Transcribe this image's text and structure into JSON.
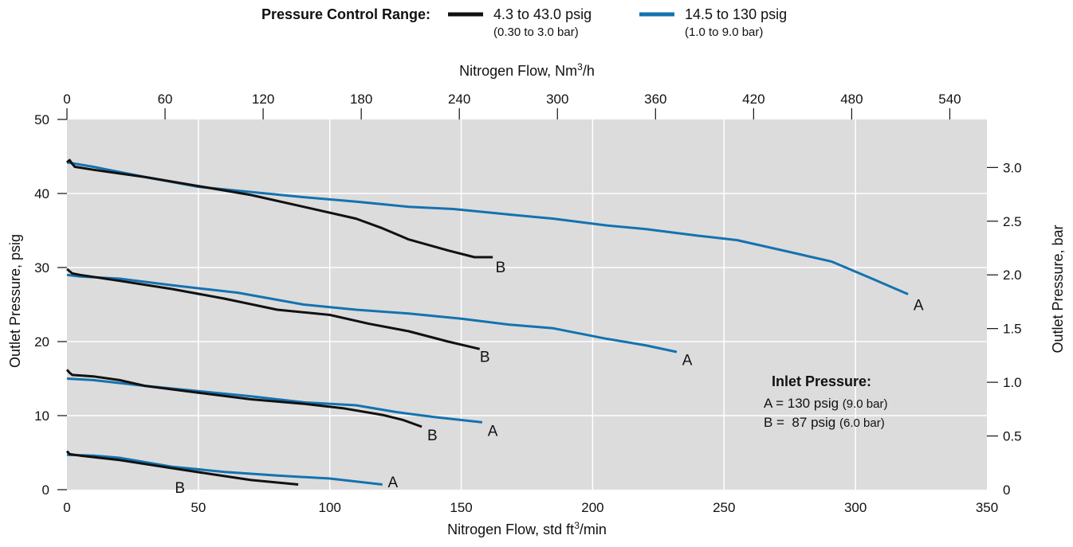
{
  "legend": {
    "title": "Pressure Control Range:",
    "items": [
      {
        "main": "4.3 to 43.0 psig",
        "sub": "(0.30 to 3.0 bar)",
        "color": "#111111"
      },
      {
        "main": "14.5 to 130 psig",
        "sub": "(1.0 to 9.0 bar)",
        "color": "#1472b0"
      }
    ]
  },
  "annotation": {
    "title": "Inlet Pressure:",
    "lines": [
      {
        "main": "A = 130 psig",
        "small": "(9.0 bar)"
      },
      {
        "main": "B =  87 psig",
        "small": "(6.0 bar)"
      }
    ]
  },
  "chart_data": {
    "type": "line",
    "title": "",
    "xlabel_bottom": {
      "pre": "Nitrogen Flow, std ft",
      "sup": "3",
      "post": "/min"
    },
    "xlabel_top": {
      "pre": "Nitrogen Flow, Nm",
      "sup": "3",
      "post": "/h"
    },
    "ylabel_left": "Outlet Pressure, psig",
    "ylabel_right": "Outlet Pressure, bar",
    "xlim": [
      0,
      350
    ],
    "ylim": [
      0,
      50
    ],
    "x_ticks": [
      "0",
      "50",
      "100",
      "150",
      "200",
      "250",
      "300",
      "350"
    ],
    "y_ticks": [
      "0",
      "10",
      "20",
      "30",
      "40",
      "50"
    ],
    "top_ticks": [
      "0",
      "60",
      "120",
      "180",
      "240",
      "300",
      "360",
      "420",
      "480",
      "540"
    ],
    "top_tick_values": [
      0,
      60,
      120,
      180,
      240,
      300,
      360,
      420,
      480,
      540
    ],
    "top_unit_factor": 1.6077,
    "right_ticks": [
      "0",
      "0.5",
      "1.0",
      "1.5",
      "2.0",
      "2.5",
      "3.0"
    ],
    "right_tick_values": [
      0,
      0.5,
      1.0,
      1.5,
      2.0,
      2.5,
      3.0
    ],
    "right_unit_factor": 14.5038,
    "grid": true,
    "legend_position": "top",
    "series": [
      {
        "name": "14.5 to 130 psig",
        "label": "A",
        "color": "#1472b0",
        "x": [
          0,
          10,
          30,
          50,
          70,
          90,
          110,
          130,
          147,
          170,
          185,
          205,
          220,
          240,
          255,
          275,
          291,
          305,
          320
        ],
        "y": [
          44.2,
          43.6,
          42.2,
          40.9,
          40.2,
          39.5,
          38.9,
          38.2,
          37.9,
          37.1,
          36.6,
          35.7,
          35.2,
          34.3,
          33.7,
          32.1,
          30.8,
          28.7,
          26.4
        ]
      },
      {
        "name": "4.3 to 43.0 psig",
        "label": "B",
        "color": "#111111",
        "x": [
          0,
          1,
          2,
          3,
          10,
          30,
          50,
          70,
          90,
          110,
          120,
          130,
          145,
          155,
          162
        ],
        "y": [
          44.2,
          44.5,
          44.0,
          43.6,
          43.2,
          42.2,
          41.0,
          39.8,
          38.2,
          36.6,
          35.3,
          33.8,
          32.3,
          31.4,
          31.4
        ]
      },
      {
        "name": "14.5 to 130 psig",
        "label": "A",
        "color": "#1472b0",
        "x": [
          0,
          5,
          20,
          40,
          65,
          90,
          110,
          130,
          150,
          168,
          185,
          205,
          220,
          232
        ],
        "y": [
          29.0,
          28.8,
          28.5,
          27.6,
          26.6,
          25.0,
          24.3,
          23.8,
          23.1,
          22.3,
          21.8,
          20.4,
          19.5,
          18.6
        ]
      },
      {
        "name": "4.3 to 43.0 psig",
        "label": "B",
        "color": "#111111",
        "x": [
          0,
          2,
          5,
          20,
          40,
          60,
          80,
          100,
          115,
          130,
          145,
          157
        ],
        "y": [
          29.8,
          29.2,
          29.0,
          28.2,
          27.1,
          25.8,
          24.3,
          23.6,
          22.4,
          21.4,
          20.0,
          19.0
        ]
      },
      {
        "name": "14.5 to 130 psig",
        "label": "A",
        "color": "#1472b0",
        "x": [
          0,
          10,
          30,
          50,
          70,
          90,
          110,
          125,
          140,
          158
        ],
        "y": [
          15.0,
          14.8,
          14.0,
          13.3,
          12.6,
          11.8,
          11.4,
          10.5,
          9.8,
          9.1
        ]
      },
      {
        "name": "4.3 to 43.0 psig",
        "label": "B",
        "color": "#111111",
        "x": [
          0,
          1,
          2,
          10,
          20,
          30,
          50,
          70,
          90,
          105,
          120,
          128,
          135
        ],
        "y": [
          16.2,
          15.8,
          15.5,
          15.3,
          14.8,
          14.0,
          13.1,
          12.2,
          11.6,
          11.0,
          10.1,
          9.4,
          8.5
        ]
      },
      {
        "name": "14.5 to 130 psig",
        "label": "A",
        "color": "#1472b0",
        "x": [
          0,
          10,
          20,
          40,
          60,
          80,
          100,
          120
        ],
        "y": [
          4.7,
          4.6,
          4.3,
          3.1,
          2.4,
          1.9,
          1.5,
          0.7
        ]
      },
      {
        "name": "4.3 to 43.0 psig",
        "label": "B",
        "color": "#111111",
        "x": [
          0,
          1,
          5,
          20,
          40,
          55,
          70,
          88
        ],
        "y": [
          5.2,
          4.8,
          4.6,
          4.0,
          2.9,
          2.1,
          1.3,
          0.7
        ]
      }
    ],
    "curve_labels": [
      {
        "text": "A",
        "x": 324,
        "y": 25.0
      },
      {
        "text": "B",
        "x": 165,
        "y": 30.1
      },
      {
        "text": "A",
        "x": 236,
        "y": 17.6
      },
      {
        "text": "B",
        "x": 159,
        "y": 18.0
      },
      {
        "text": "A",
        "x": 162,
        "y": 8.0
      },
      {
        "text": "B",
        "x": 139,
        "y": 7.4
      },
      {
        "text": "A",
        "x": 124,
        "y": 1.1
      },
      {
        "text": "B",
        "x": 43,
        "y": 0.3
      }
    ]
  }
}
